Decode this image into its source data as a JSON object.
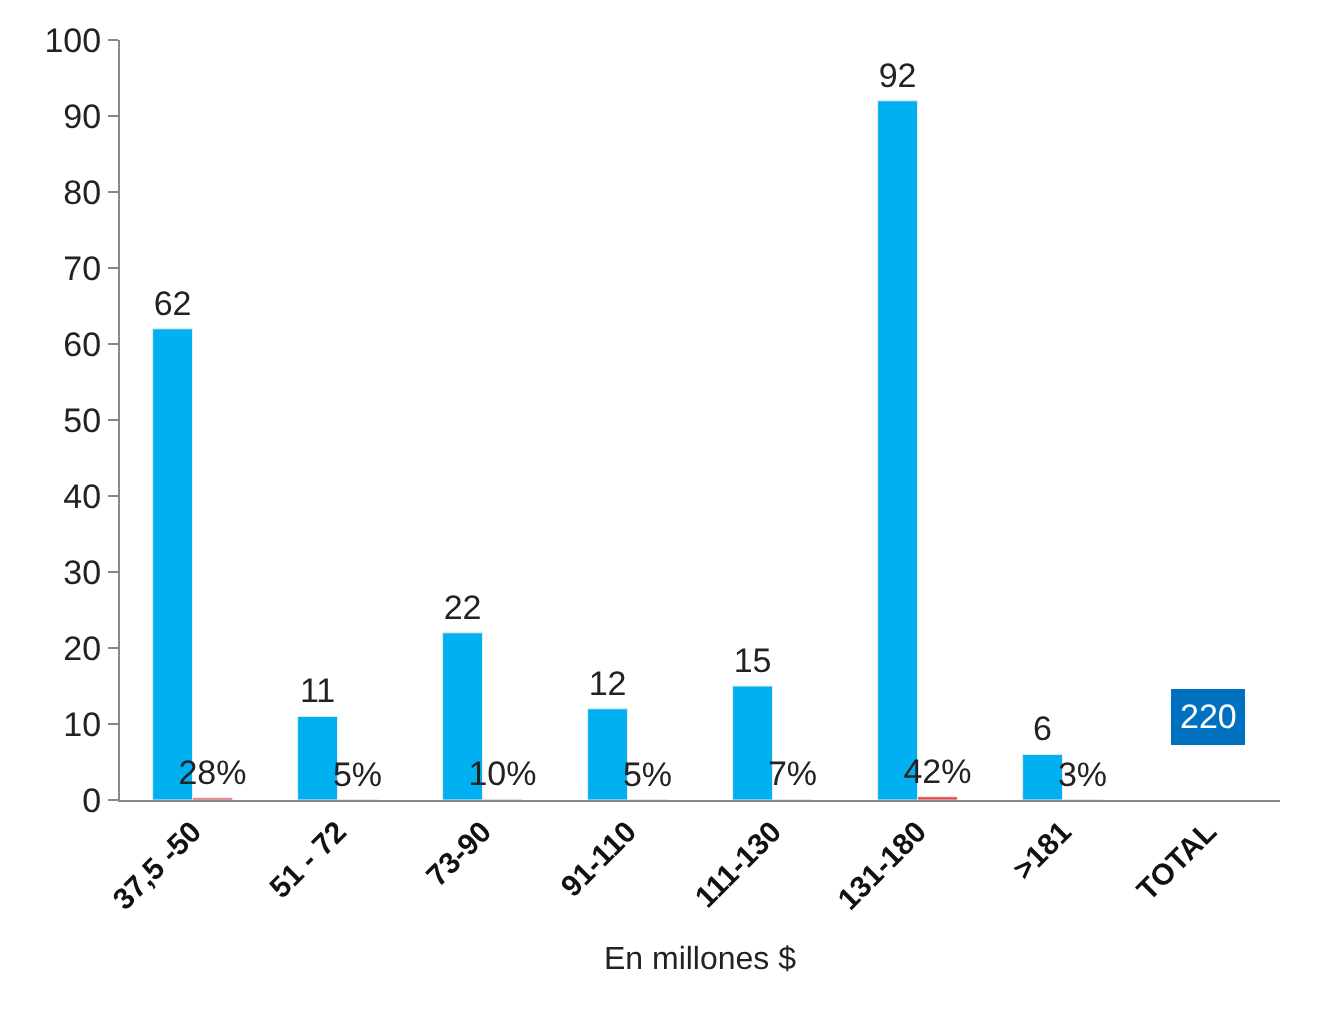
{
  "chart_data": {
    "type": "bar",
    "xlabel": "En millones $",
    "categories": [
      "37,5 -50",
      "51 - 72",
      "73-90",
      "91-110",
      "111-130",
      "131-180",
      ">181",
      "TOTAL"
    ],
    "series": [
      {
        "color": "#00b0f0",
        "values": [
          62,
          11,
          22,
          12,
          15,
          92,
          6,
          null
        ],
        "value_labels": [
          "62",
          "11",
          "22",
          "12",
          "15",
          "92",
          "6",
          null
        ]
      },
      {
        "color": "#e8413c",
        "values": [
          0.28,
          0.05,
          0.1,
          0.05,
          0.07,
          0.42,
          0.03,
          null
        ],
        "value_labels": [
          "28%",
          "5%",
          "10%",
          "5%",
          "7%",
          "42%",
          "3%",
          null
        ]
      }
    ],
    "annotations": [
      "220"
    ],
    "ylim": [
      0,
      100
    ],
    "yticks": [
      0,
      10,
      20,
      30,
      40,
      50,
      60,
      70,
      80,
      90,
      100
    ],
    "legend": false
  }
}
